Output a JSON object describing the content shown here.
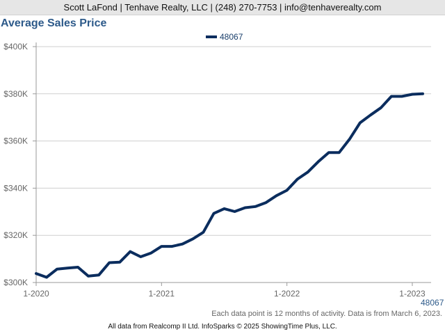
{
  "header": {
    "contact": "Scott LaFond | Tenhave Realty, LLC | (248) 270-7753 | info@tenhaverealty.com"
  },
  "chart_data": {
    "type": "line",
    "title": "Average Sales Price",
    "xlabel": "",
    "ylabel": "",
    "ylim": [
      300000,
      400000
    ],
    "y_ticks": [
      {
        "value": 300000,
        "label": "$300K"
      },
      {
        "value": 320000,
        "label": "$320K"
      },
      {
        "value": 340000,
        "label": "$340K"
      },
      {
        "value": 360000,
        "label": "$360K"
      },
      {
        "value": 380000,
        "label": "$380K"
      },
      {
        "value": 400000,
        "label": "$400K"
      }
    ],
    "x_ticks": [
      {
        "value": "2020-01",
        "label": "1-2020"
      },
      {
        "value": "2021-01",
        "label": "1-2021"
      },
      {
        "value": "2022-01",
        "label": "1-2022"
      },
      {
        "value": "2023-01",
        "label": "1-2023"
      }
    ],
    "xlim": [
      "2020-01",
      "2023-02"
    ],
    "grid": true,
    "legend_placement": "top-center",
    "series": [
      {
        "name": "48067",
        "color": "#0b2d5e",
        "end_label": "48067",
        "points": [
          {
            "x": "2020-01",
            "y": 303800
          },
          {
            "x": "2020-02",
            "y": 302200
          },
          {
            "x": "2020-03",
            "y": 305700
          },
          {
            "x": "2020-04",
            "y": 306100
          },
          {
            "x": "2020-05",
            "y": 306500
          },
          {
            "x": "2020-06",
            "y": 302700
          },
          {
            "x": "2020-07",
            "y": 303200
          },
          {
            "x": "2020-08",
            "y": 308400
          },
          {
            "x": "2020-09",
            "y": 308600
          },
          {
            "x": "2020-10",
            "y": 313100
          },
          {
            "x": "2020-11",
            "y": 310900
          },
          {
            "x": "2020-12",
            "y": 312500
          },
          {
            "x": "2021-01",
            "y": 315300
          },
          {
            "x": "2021-02",
            "y": 315300
          },
          {
            "x": "2021-03",
            "y": 316300
          },
          {
            "x": "2021-04",
            "y": 318500
          },
          {
            "x": "2021-05",
            "y": 321300
          },
          {
            "x": "2021-06",
            "y": 329300
          },
          {
            "x": "2021-07",
            "y": 331300
          },
          {
            "x": "2021-08",
            "y": 330100
          },
          {
            "x": "2021-09",
            "y": 331700
          },
          {
            "x": "2021-10",
            "y": 332200
          },
          {
            "x": "2021-11",
            "y": 333900
          },
          {
            "x": "2021-12",
            "y": 336800
          },
          {
            "x": "2022-01",
            "y": 339100
          },
          {
            "x": "2022-02",
            "y": 343800
          },
          {
            "x": "2022-03",
            "y": 346800
          },
          {
            "x": "2022-04",
            "y": 351200
          },
          {
            "x": "2022-05",
            "y": 355100
          },
          {
            "x": "2022-06",
            "y": 355100
          },
          {
            "x": "2022-07",
            "y": 360800
          },
          {
            "x": "2022-08",
            "y": 367700
          },
          {
            "x": "2022-09",
            "y": 371000
          },
          {
            "x": "2022-10",
            "y": 374100
          },
          {
            "x": "2022-11",
            "y": 378900
          },
          {
            "x": "2022-12",
            "y": 378900
          },
          {
            "x": "2023-01",
            "y": 379800
          },
          {
            "x": "2023-02",
            "y": 380000
          }
        ]
      }
    ]
  },
  "footnote": "Each data point is 12 months of activity. Data is from March 6, 2023.",
  "footer": "All data from Realcomp II Ltd. InfoSparks © 2025 ShowingTime Plus, LLC."
}
